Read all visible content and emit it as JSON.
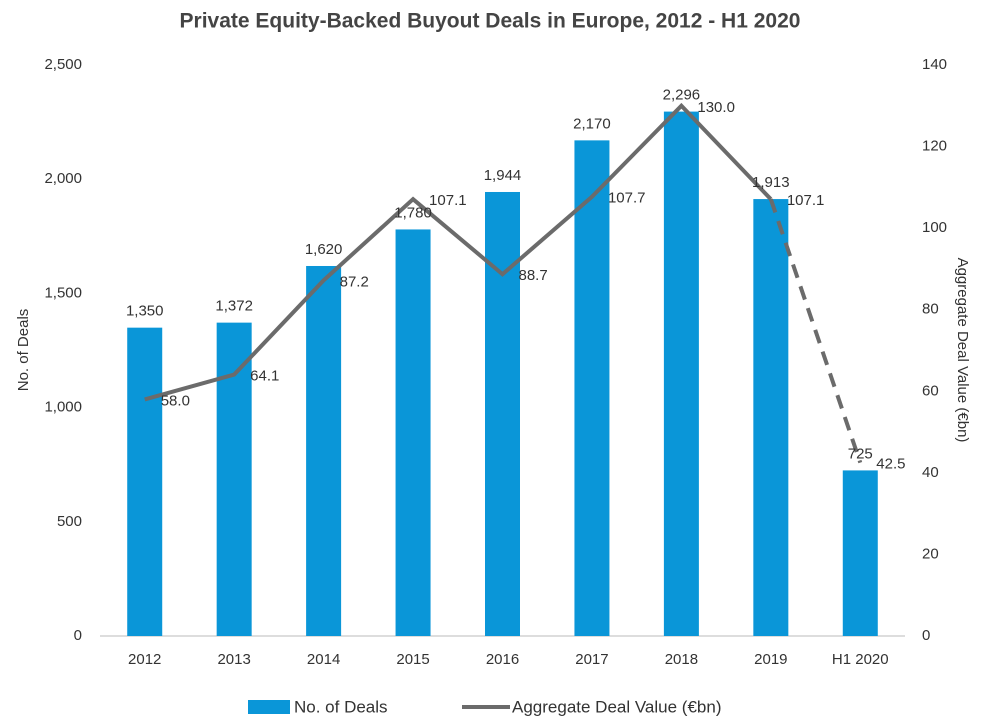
{
  "chart_data": {
    "type": "bar_line",
    "title": "Private Equity-Backed Buyout Deals in Europe, 2012 - H1 2020",
    "categories": [
      "2012",
      "2013",
      "2014",
      "2015",
      "2016",
      "2017",
      "2018",
      "2019",
      "H1 2020"
    ],
    "series": [
      {
        "name": "No. of Deals",
        "type": "bar",
        "color": "#0a96d8",
        "axis": "y",
        "values": [
          1350,
          1372,
          1620,
          1780,
          1944,
          2170,
          2296,
          1913,
          725
        ],
        "value_labels": [
          "1,350",
          "1,372",
          "1,620",
          "1,780",
          "1,944",
          "2,170",
          "2,296",
          "1,913",
          "725"
        ]
      },
      {
        "name": "Aggregate Deal Value (€bn)",
        "type": "line",
        "color": "#6b6b6b",
        "axis": "y2",
        "dashed_last_segment": true,
        "values": [
          58.0,
          64.1,
          87.2,
          107.1,
          88.7,
          107.7,
          130.0,
          107.1,
          42.5
        ],
        "value_labels": [
          "58.0",
          "64.1",
          "87.2",
          "107.1",
          "88.7",
          "107.7",
          "130.0",
          "107.1",
          "42.5"
        ]
      }
    ],
    "ylabel": "No. of Deals",
    "y2label": "Aggregate Deal Value (€bn)",
    "ylim": [
      0,
      2500
    ],
    "yticks": [
      0,
      500,
      {
        "value": 1000,
        "label": "1,000"
      },
      {
        "value": 1500,
        "label": "1,500"
      },
      {
        "value": 2000,
        "label": "2,000"
      },
      {
        "value": 2500,
        "label": "2,500"
      }
    ],
    "y2lim": [
      0,
      140
    ],
    "y2ticks": [
      0,
      20,
      40,
      60,
      80,
      100,
      120,
      140
    ],
    "legend": "bottom"
  }
}
